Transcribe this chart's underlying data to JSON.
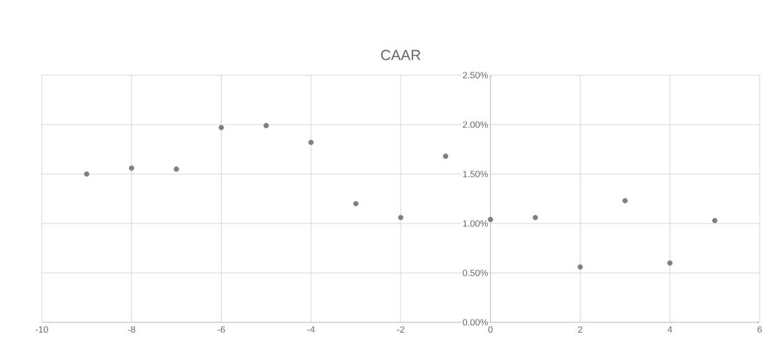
{
  "chart_data": {
    "type": "scatter",
    "title": "CAAR",
    "x": [
      -9,
      -8,
      -7,
      -6,
      -5,
      -4,
      -3,
      -2,
      -1,
      0,
      1,
      2,
      3,
      4,
      5
    ],
    "series": [
      {
        "color": "#7f7f7f",
        "values": [
          1.5,
          1.56,
          1.55,
          1.97,
          1.99,
          1.82,
          1.2,
          1.06,
          1.68,
          1.04,
          1.06,
          0.56,
          1.23,
          0.6,
          1.03
        ]
      }
    ],
    "xlim": [
      -10,
      6
    ],
    "xticks": [
      -10,
      -8,
      -6,
      -4,
      -2,
      0,
      2,
      4,
      6
    ],
    "ylim": [
      0,
      2.5
    ],
    "yticks": [
      {
        "value": 0,
        "label": "0.00%"
      },
      {
        "value": 0.5,
        "label": "0.50%"
      },
      {
        "value": 1,
        "label": "1.00%"
      },
      {
        "value": 1.5,
        "label": "1.50%"
      },
      {
        "value": 2,
        "label": "2.00%"
      },
      {
        "value": 2.5,
        "label": "2.50%"
      }
    ],
    "grid": true,
    "marker": "circle"
  }
}
